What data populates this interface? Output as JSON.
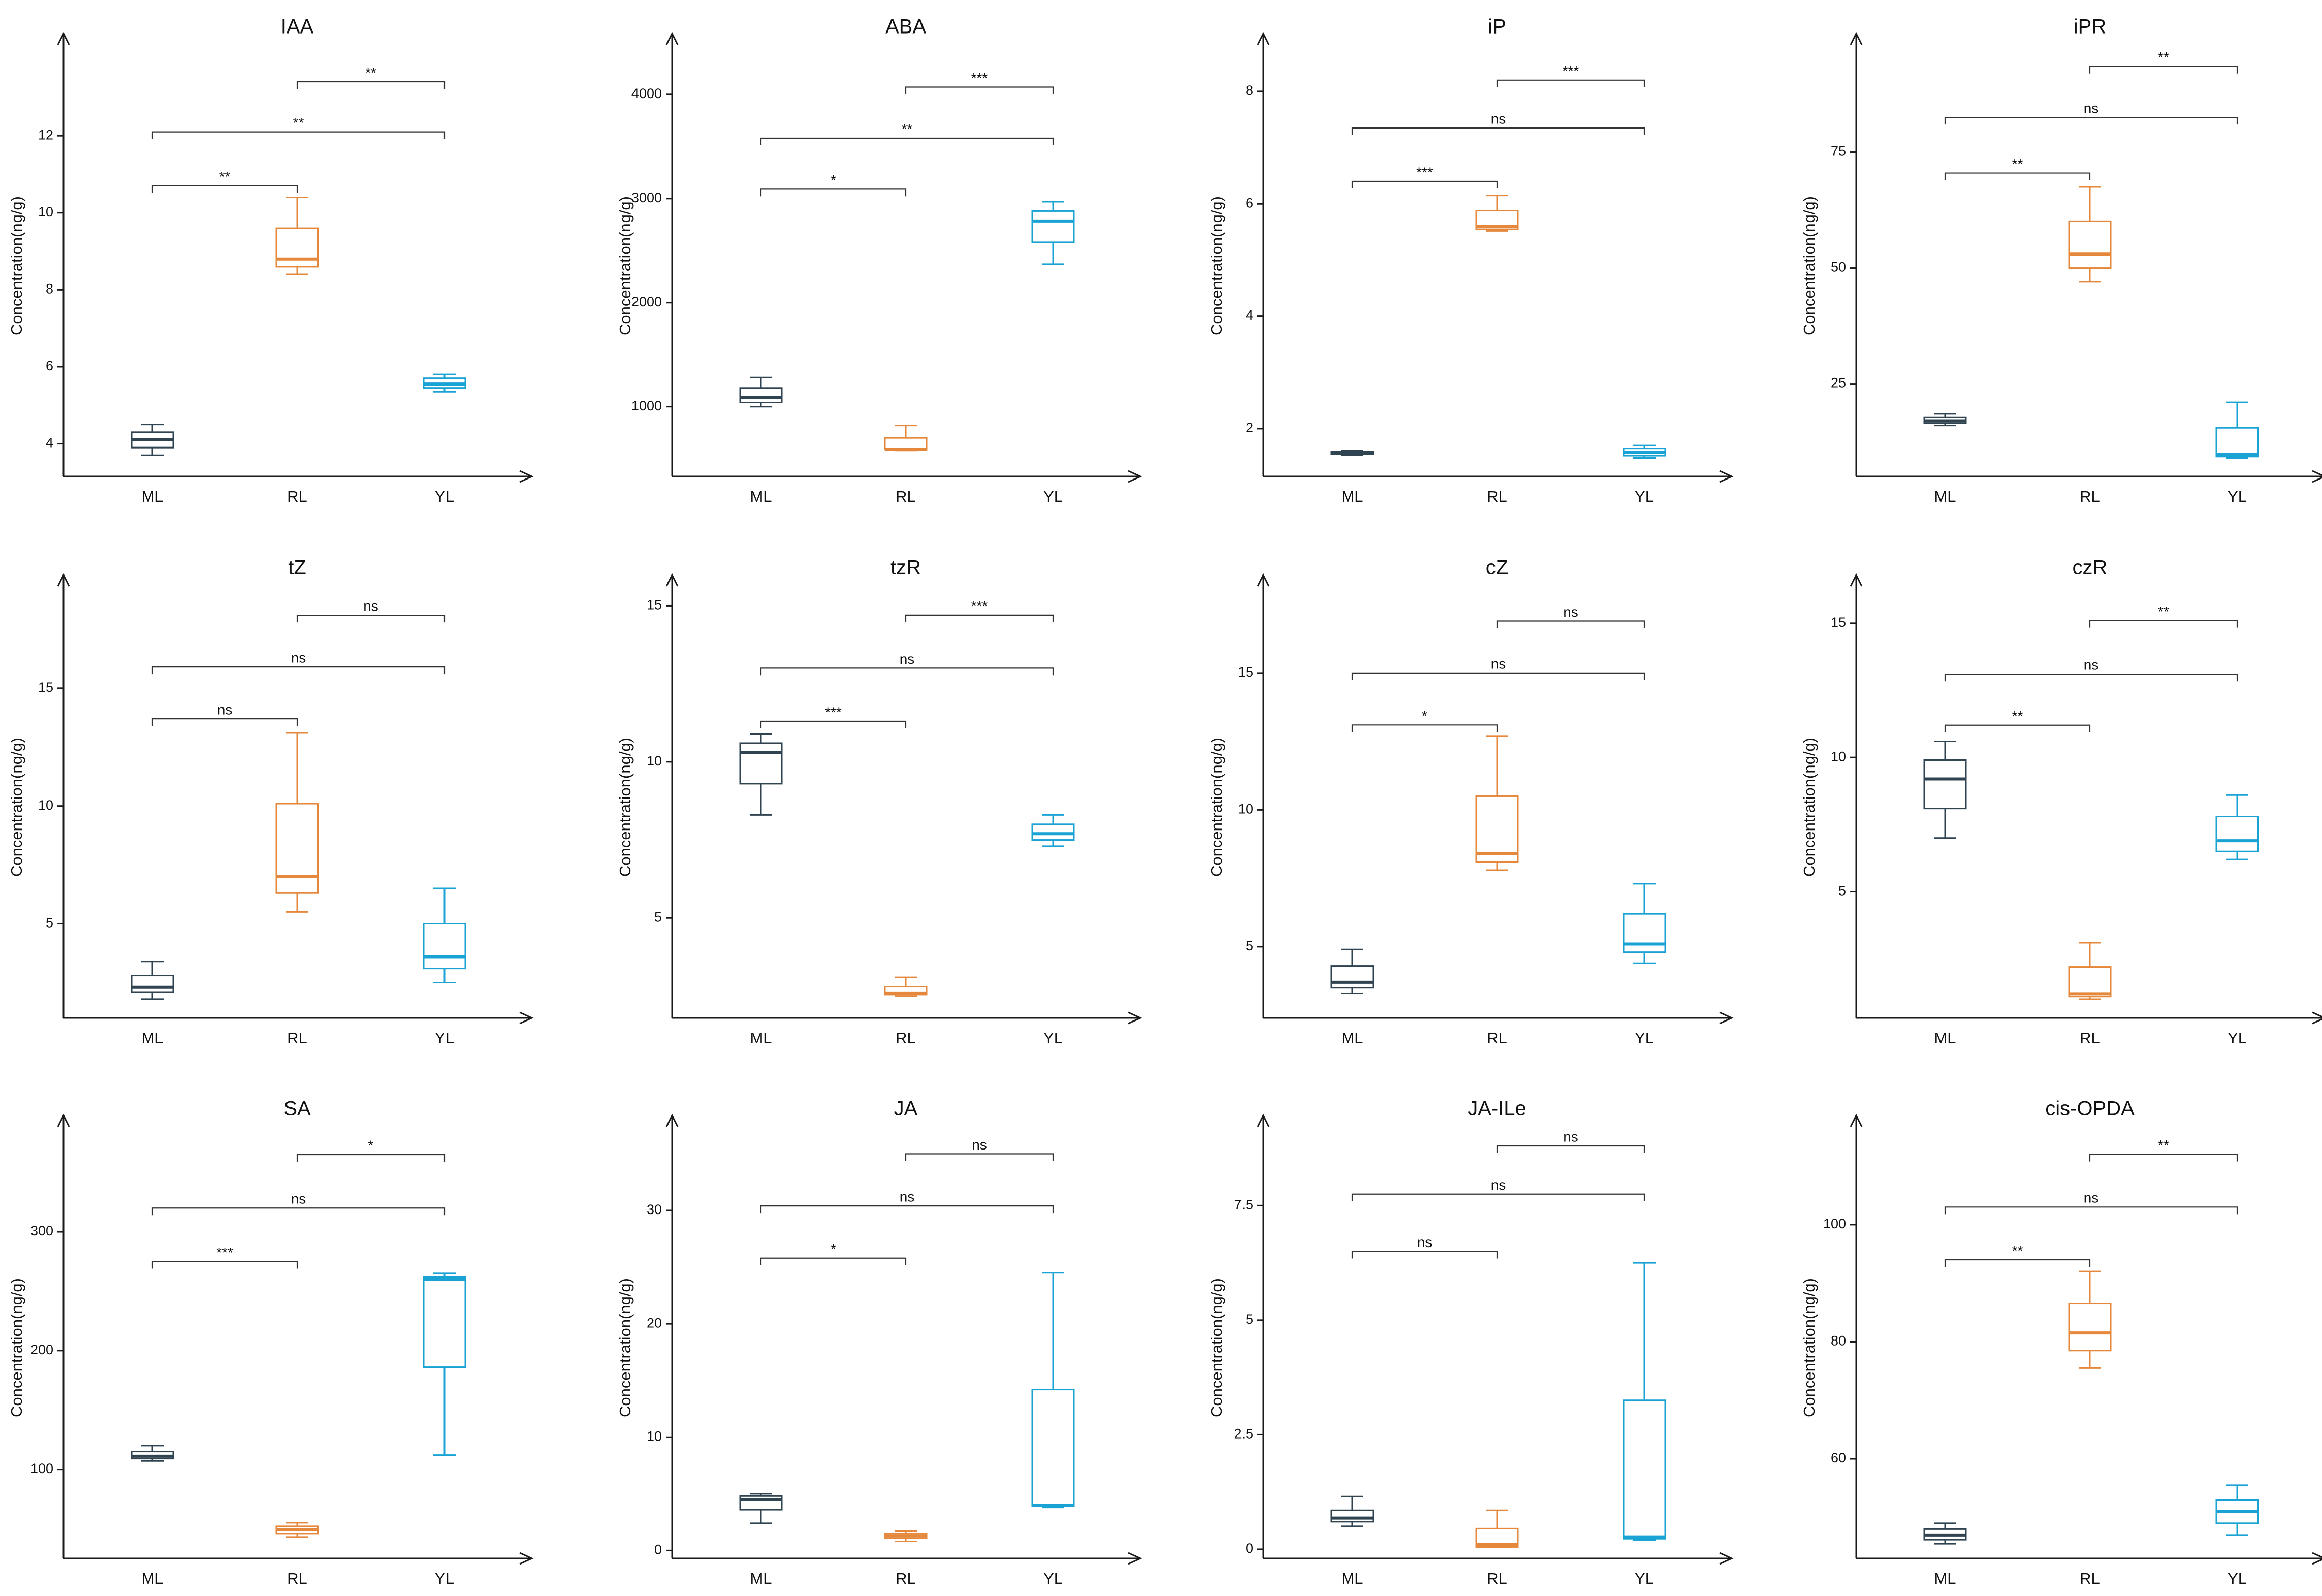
{
  "colors": {
    "ML": "#2f4350",
    "RL": "#e5883c",
    "YL": "#19a3d4"
  },
  "chart_data": [
    {
      "type": "box",
      "title": "IAA",
      "ylabel": "Concentration(ng/g)",
      "categories": [
        "ML",
        "RL",
        "YL"
      ],
      "ylim": [
        3.15,
        14.1
      ],
      "yticks": [
        4,
        6,
        8,
        10,
        12
      ],
      "boxes": [
        {
          "category": "ML",
          "min": 3.7,
          "q1": 3.9,
          "median": 4.1,
          "q3": 4.3,
          "max": 4.5
        },
        {
          "category": "RL",
          "min": 8.4,
          "q1": 8.6,
          "median": 8.8,
          "q3": 9.6,
          "max": 10.4
        },
        {
          "category": "YL",
          "min": 5.35,
          "q1": 5.45,
          "median": 5.55,
          "q3": 5.7,
          "max": 5.8
        }
      ],
      "significance": [
        {
          "from": "ML",
          "to": "RL",
          "level": 10.7,
          "label": "**"
        },
        {
          "from": "ML",
          "to": "YL",
          "level": 12.1,
          "label": "**"
        },
        {
          "from": "RL",
          "to": "YL",
          "level": 13.4,
          "label": "**"
        }
      ]
    },
    {
      "type": "box",
      "title": "ABA",
      "ylabel": "Concentration(ng/g)",
      "categories": [
        "ML",
        "RL",
        "YL"
      ],
      "ylim": [
        330,
        4380
      ],
      "yticks": [
        1000,
        2000,
        3000,
        4000
      ],
      "boxes": [
        {
          "category": "ML",
          "min": 1000,
          "q1": 1040,
          "median": 1090,
          "q3": 1180,
          "max": 1280
        },
        {
          "category": "RL",
          "min": 580,
          "q1": 590,
          "median": 590,
          "q3": 700,
          "max": 820
        },
        {
          "category": "YL",
          "min": 2370,
          "q1": 2580,
          "median": 2780,
          "q3": 2880,
          "max": 2970
        }
      ],
      "significance": [
        {
          "from": "ML",
          "to": "RL",
          "level": 3090,
          "label": "*"
        },
        {
          "from": "ML",
          "to": "YL",
          "level": 3580,
          "label": "**"
        },
        {
          "from": "RL",
          "to": "YL",
          "level": 4070,
          "label": "***"
        }
      ]
    },
    {
      "type": "box",
      "title": "iP",
      "ylabel": "Concentration(ng/g)",
      "categories": [
        "ML",
        "RL",
        "YL"
      ],
      "ylim": [
        1.15,
        8.65
      ],
      "yticks": [
        2,
        4,
        6,
        8
      ],
      "boxes": [
        {
          "category": "ML",
          "min": 1.53,
          "q1": 1.55,
          "median": 1.57,
          "q3": 1.59,
          "max": 1.61
        },
        {
          "category": "RL",
          "min": 5.52,
          "q1": 5.55,
          "median": 5.6,
          "q3": 5.88,
          "max": 6.15
        },
        {
          "category": "YL",
          "min": 1.48,
          "q1": 1.52,
          "median": 1.58,
          "q3": 1.65,
          "max": 1.7
        }
      ],
      "significance": [
        {
          "from": "ML",
          "to": "RL",
          "level": 6.4,
          "label": "***"
        },
        {
          "from": "ML",
          "to": "YL",
          "level": 7.35,
          "label": "ns"
        },
        {
          "from": "RL",
          "to": "YL",
          "level": 8.2,
          "label": "***"
        }
      ]
    },
    {
      "type": "box",
      "title": "iPR",
      "ylabel": "Concentration(ng/g)",
      "categories": [
        "ML",
        "RL",
        "YL"
      ],
      "ylim": [
        5,
        96
      ],
      "yticks": [
        25,
        50,
        75
      ],
      "boxes": [
        {
          "category": "ML",
          "min": 16,
          "q1": 16.5,
          "median": 17,
          "q3": 17.8,
          "max": 18.5
        },
        {
          "category": "RL",
          "min": 47,
          "q1": 50,
          "median": 53,
          "q3": 60,
          "max": 67.5
        },
        {
          "category": "YL",
          "min": 9,
          "q1": 9.3,
          "median": 9.8,
          "q3": 15.5,
          "max": 21
        }
      ],
      "significance": [
        {
          "from": "ML",
          "to": "RL",
          "level": 70.5,
          "label": "**"
        },
        {
          "from": "ML",
          "to": "YL",
          "level": 82.5,
          "label": "ns"
        },
        {
          "from": "RL",
          "to": "YL",
          "level": 93.5,
          "label": "**"
        }
      ]
    },
    {
      "type": "box",
      "title": "tZ",
      "ylabel": "Concentration(ng/g)",
      "categories": [
        "ML",
        "RL",
        "YL"
      ],
      "ylim": [
        1,
        18.9
      ],
      "yticks": [
        5,
        10,
        15
      ],
      "boxes": [
        {
          "category": "ML",
          "min": 1.8,
          "q1": 2.1,
          "median": 2.3,
          "q3": 2.8,
          "max": 3.4
        },
        {
          "category": "RL",
          "min": 5.5,
          "q1": 6.3,
          "median": 7,
          "q3": 10.1,
          "max": 13.1
        },
        {
          "category": "YL",
          "min": 2.5,
          "q1": 3.1,
          "median": 3.6,
          "q3": 5,
          "max": 6.5
        }
      ],
      "significance": [
        {
          "from": "ML",
          "to": "RL",
          "level": 13.7,
          "label": "ns"
        },
        {
          "from": "ML",
          "to": "YL",
          "level": 15.9,
          "label": "ns"
        },
        {
          "from": "RL",
          "to": "YL",
          "level": 18.1,
          "label": "ns"
        }
      ]
    },
    {
      "type": "box",
      "title": "tzR",
      "ylabel": "Concentration(ng/g)",
      "categories": [
        "ML",
        "RL",
        "YL"
      ],
      "ylim": [
        1.8,
        15.3
      ],
      "yticks": [
        5,
        10,
        15
      ],
      "boxes": [
        {
          "category": "ML",
          "min": 8.3,
          "q1": 9.3,
          "median": 10.3,
          "q3": 10.6,
          "max": 10.9
        },
        {
          "category": "RL",
          "min": 2.5,
          "q1": 2.55,
          "median": 2.6,
          "q3": 2.8,
          "max": 3.1
        },
        {
          "category": "YL",
          "min": 7.3,
          "q1": 7.5,
          "median": 7.7,
          "q3": 8,
          "max": 8.3
        }
      ],
      "significance": [
        {
          "from": "ML",
          "to": "RL",
          "level": 11.3,
          "label": "***"
        },
        {
          "from": "ML",
          "to": "YL",
          "level": 13,
          "label": "ns"
        },
        {
          "from": "RL",
          "to": "YL",
          "level": 14.7,
          "label": "***"
        }
      ]
    },
    {
      "type": "box",
      "title": "cZ",
      "ylabel": "Concentration(ng/g)",
      "categories": [
        "ML",
        "RL",
        "YL"
      ],
      "ylim": [
        2.4,
        17.8
      ],
      "yticks": [
        5,
        10,
        15
      ],
      "boxes": [
        {
          "category": "ML",
          "min": 3.3,
          "q1": 3.5,
          "median": 3.7,
          "q3": 4.3,
          "max": 4.9
        },
        {
          "category": "RL",
          "min": 7.8,
          "q1": 8.1,
          "median": 8.4,
          "q3": 10.5,
          "max": 12.7
        },
        {
          "category": "YL",
          "min": 4.4,
          "q1": 4.8,
          "median": 5.1,
          "q3": 6.2,
          "max": 7.3
        }
      ],
      "significance": [
        {
          "from": "ML",
          "to": "RL",
          "level": 13.1,
          "label": "*"
        },
        {
          "from": "ML",
          "to": "YL",
          "level": 15,
          "label": "ns"
        },
        {
          "from": "RL",
          "to": "YL",
          "level": 16.9,
          "label": "ns"
        }
      ]
    },
    {
      "type": "box",
      "title": "czR",
      "ylabel": "Concentration(ng/g)",
      "categories": [
        "ML",
        "RL",
        "YL"
      ],
      "ylim": [
        0.3,
        16
      ],
      "yticks": [
        5,
        10,
        15
      ],
      "boxes": [
        {
          "category": "ML",
          "min": 7,
          "q1": 8.1,
          "median": 9.2,
          "q3": 9.9,
          "max": 10.6
        },
        {
          "category": "RL",
          "min": 1,
          "q1": 1.1,
          "median": 1.2,
          "q3": 2.2,
          "max": 3.1
        },
        {
          "category": "YL",
          "min": 6.2,
          "q1": 6.5,
          "median": 6.9,
          "q3": 7.8,
          "max": 8.6
        }
      ],
      "significance": [
        {
          "from": "ML",
          "to": "RL",
          "level": 11.2,
          "label": "**"
        },
        {
          "from": "ML",
          "to": "YL",
          "level": 13.1,
          "label": "ns"
        },
        {
          "from": "RL",
          "to": "YL",
          "level": 15.1,
          "label": "**"
        }
      ]
    },
    {
      "type": "box",
      "title": "SA",
      "ylabel": "Concentration(ng/g)",
      "categories": [
        "ML",
        "RL",
        "YL"
      ],
      "ylim": [
        25,
        380
      ],
      "yticks": [
        100,
        200,
        300
      ],
      "boxes": [
        {
          "category": "ML",
          "min": 107,
          "q1": 109,
          "median": 111,
          "q3": 115,
          "max": 120
        },
        {
          "category": "RL",
          "min": 43,
          "q1": 46,
          "median": 49,
          "q3": 52,
          "max": 55
        },
        {
          "category": "YL",
          "min": 112,
          "q1": 186,
          "median": 260,
          "q3": 262,
          "max": 265
        }
      ],
      "significance": [
        {
          "from": "ML",
          "to": "RL",
          "level": 275,
          "label": "***"
        },
        {
          "from": "ML",
          "to": "YL",
          "level": 320,
          "label": "ns"
        },
        {
          "from": "RL",
          "to": "YL",
          "level": 365,
          "label": "*"
        }
      ]
    },
    {
      "type": "box",
      "title": "JA",
      "ylabel": "Concentration(ng/g)",
      "categories": [
        "ML",
        "RL",
        "YL"
      ],
      "ylim": [
        -0.7,
        36.5
      ],
      "yticks": [
        0,
        10,
        20,
        30
      ],
      "boxes": [
        {
          "category": "ML",
          "min": 2.4,
          "q1": 3.6,
          "median": 4.5,
          "q3": 4.8,
          "max": 5
        },
        {
          "category": "RL",
          "min": 0.8,
          "q1": 1.1,
          "median": 1.3,
          "q3": 1.5,
          "max": 1.7
        },
        {
          "category": "YL",
          "min": 3.8,
          "q1": 3.9,
          "median": 4,
          "q3": 14.2,
          "max": 24.5
        }
      ],
      "significance": [
        {
          "from": "ML",
          "to": "RL",
          "level": 25.8,
          "label": "*"
        },
        {
          "from": "ML",
          "to": "YL",
          "level": 30.4,
          "label": "ns"
        },
        {
          "from": "RL",
          "to": "YL",
          "level": 35,
          "label": "ns"
        }
      ]
    },
    {
      "type": "box",
      "title": "JA-ILe",
      "ylabel": "Concentration(ng/g)",
      "categories": [
        "ML",
        "RL",
        "YL"
      ],
      "ylim": [
        -0.2,
        9
      ],
      "yticks": [
        0,
        2.5,
        5,
        7.5
      ],
      "yticklabels": [
        "0",
        "2.5",
        "5",
        "7.5"
      ],
      "boxes": [
        {
          "category": "ML",
          "min": 0.5,
          "q1": 0.6,
          "median": 0.68,
          "q3": 0.85,
          "max": 1.15
        },
        {
          "category": "RL",
          "min": 0.05,
          "q1": 0.05,
          "median": 0.1,
          "q3": 0.45,
          "max": 0.85
        },
        {
          "category": "YL",
          "min": 0.2,
          "q1": 0.23,
          "median": 0.27,
          "q3": 3.25,
          "max": 6.25
        }
      ],
      "significance": [
        {
          "from": "ML",
          "to": "RL",
          "level": 6.5,
          "label": "ns"
        },
        {
          "from": "ML",
          "to": "YL",
          "level": 7.75,
          "label": "ns"
        },
        {
          "from": "RL",
          "to": "YL",
          "level": 8.8,
          "label": "ns"
        }
      ]
    },
    {
      "type": "box",
      "title": "cis-OPDA",
      "ylabel": "Concentration(ng/g)",
      "categories": [
        "ML",
        "RL",
        "YL"
      ],
      "ylim": [
        43,
        115
      ],
      "yticks": [
        60,
        80,
        100
      ],
      "boxes": [
        {
          "category": "ML",
          "min": 45.5,
          "q1": 46.2,
          "median": 47,
          "q3": 48,
          "max": 49
        },
        {
          "category": "RL",
          "min": 75.5,
          "q1": 78.5,
          "median": 81.5,
          "q3": 86.5,
          "max": 92
        },
        {
          "category": "YL",
          "min": 47,
          "q1": 49,
          "median": 51,
          "q3": 53,
          "max": 55.5
        }
      ],
      "significance": [
        {
          "from": "ML",
          "to": "RL",
          "level": 94,
          "label": "**"
        },
        {
          "from": "ML",
          "to": "YL",
          "level": 103,
          "label": "ns"
        },
        {
          "from": "RL",
          "to": "YL",
          "level": 112,
          "label": "**"
        }
      ]
    }
  ]
}
